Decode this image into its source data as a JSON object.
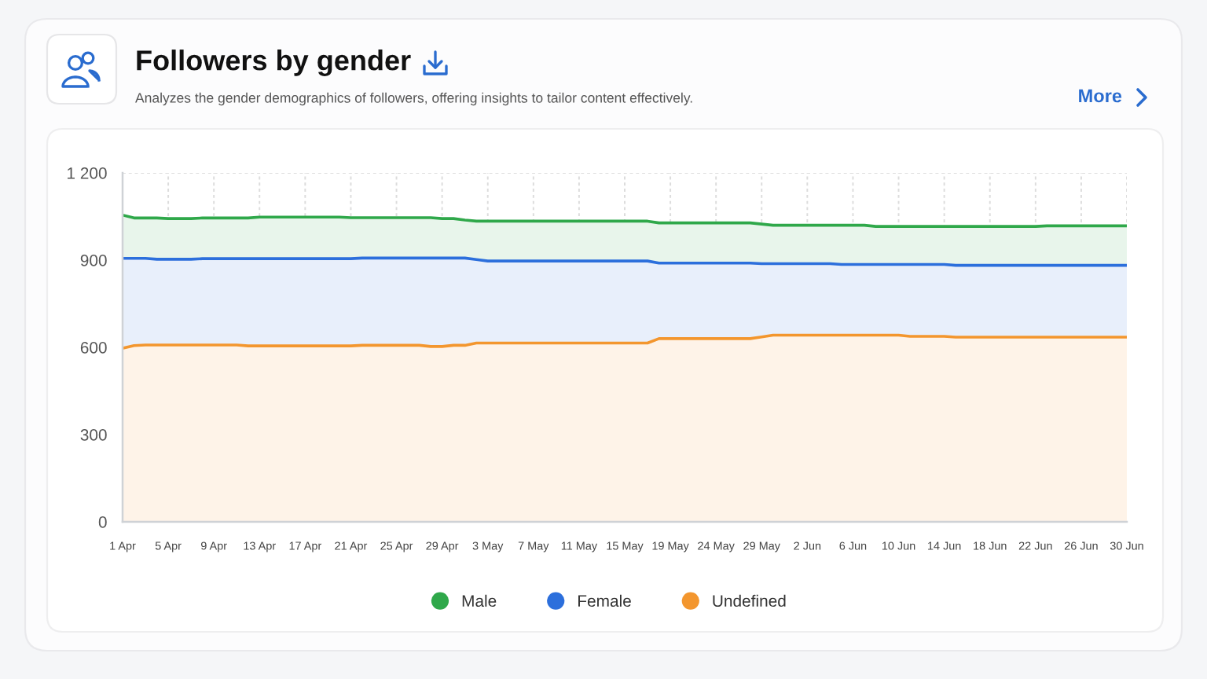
{
  "chart_data": {
    "type": "area",
    "title": "Followers by gender",
    "subtitle": "Analyzes the gender demographics of followers, offering insights to tailor content effectively.",
    "annotations": [
      "More"
    ],
    "categories": [
      "1 Apr",
      null,
      null,
      null,
      "5 Apr",
      null,
      null,
      null,
      "9 Apr",
      null,
      null,
      null,
      "13 Apr",
      null,
      null,
      null,
      "17 Apr",
      null,
      null,
      null,
      "21 Apr",
      null,
      null,
      null,
      "25 Apr",
      null,
      null,
      null,
      "29 Apr",
      null,
      null,
      null,
      "3 May",
      null,
      null,
      null,
      "7 May",
      null,
      null,
      null,
      "11 May",
      null,
      null,
      null,
      "15 May",
      null,
      null,
      null,
      "19 May",
      null,
      null,
      null,
      "24 May",
      null,
      null,
      null,
      "29 May",
      null,
      null,
      null,
      "2 Jun",
      null,
      null,
      null,
      "6 Jun",
      null,
      null,
      null,
      "10 Jun",
      null,
      null,
      null,
      "14 Jun",
      null,
      null,
      null,
      "18 Jun",
      null,
      null,
      null,
      "22 Jun",
      null,
      null,
      null,
      "26 Jun",
      null,
      null,
      null,
      "30 Jun"
    ],
    "series": [
      {
        "name": "Male",
        "color": "#2fa84a",
        "values": [
          1055,
          1045,
          1045,
          1045,
          1043,
          1043,
          1043,
          1045,
          1045,
          1045,
          1045,
          1045,
          1048,
          1048,
          1048,
          1048,
          1048,
          1048,
          1048,
          1048,
          1046,
          1046,
          1046,
          1046,
          1046,
          1046,
          1046,
          1046,
          1043,
          1043,
          1038,
          1034,
          1034,
          1034,
          1034,
          1034,
          1034,
          1034,
          1034,
          1034,
          1034,
          1034,
          1034,
          1034,
          1034,
          1034,
          1034,
          1028,
          1028,
          1028,
          1028,
          1028,
          1028,
          1028,
          1028,
          1028,
          1024,
          1020,
          1020,
          1020,
          1020,
          1020,
          1020,
          1020,
          1020,
          1020,
          1016,
          1016,
          1016,
          1016,
          1016,
          1016,
          1016,
          1016,
          1016,
          1016,
          1016,
          1016,
          1016,
          1016,
          1016,
          1018,
          1018,
          1018,
          1018,
          1018,
          1018,
          1018,
          1018
        ]
      },
      {
        "name": "Female",
        "color": "#2c6fdc",
        "values": [
          906,
          906,
          906,
          903,
          903,
          903,
          903,
          905,
          905,
          905,
          905,
          905,
          905,
          905,
          905,
          905,
          905,
          905,
          905,
          905,
          905,
          907,
          907,
          907,
          907,
          907,
          907,
          907,
          907,
          907,
          907,
          902,
          897,
          897,
          897,
          897,
          897,
          897,
          897,
          897,
          897,
          897,
          897,
          897,
          897,
          897,
          897,
          890,
          890,
          890,
          890,
          890,
          890,
          890,
          890,
          890,
          888,
          888,
          888,
          888,
          888,
          888,
          888,
          885,
          885,
          885,
          885,
          885,
          885,
          885,
          885,
          885,
          885,
          882,
          882,
          882,
          882,
          882,
          882,
          882,
          882,
          882,
          882,
          882,
          882,
          882,
          882,
          882,
          882
        ]
      },
      {
        "name": "Undefined",
        "color": "#f3962e",
        "values": [
          597,
          606,
          608,
          608,
          608,
          608,
          608,
          608,
          608,
          608,
          608,
          605,
          605,
          605,
          605,
          605,
          605,
          605,
          605,
          605,
          605,
          607,
          607,
          607,
          607,
          607,
          607,
          603,
          603,
          607,
          607,
          615,
          615,
          615,
          615,
          615,
          615,
          615,
          615,
          615,
          615,
          615,
          615,
          615,
          615,
          615,
          615,
          630,
          630,
          630,
          630,
          630,
          630,
          630,
          630,
          630,
          636,
          642,
          642,
          642,
          642,
          642,
          642,
          642,
          642,
          642,
          642,
          642,
          642,
          638,
          638,
          638,
          638,
          635,
          635,
          635,
          635,
          635,
          635,
          635,
          635,
          635,
          635,
          635,
          635,
          635,
          635,
          635,
          635
        ]
      }
    ],
    "ylim": [
      0,
      1200
    ],
    "yticks": [
      0,
      300,
      600,
      900,
      {
        "value": 1200,
        "label": "1 200"
      }
    ],
    "grid": true,
    "legend": "bottom"
  }
}
